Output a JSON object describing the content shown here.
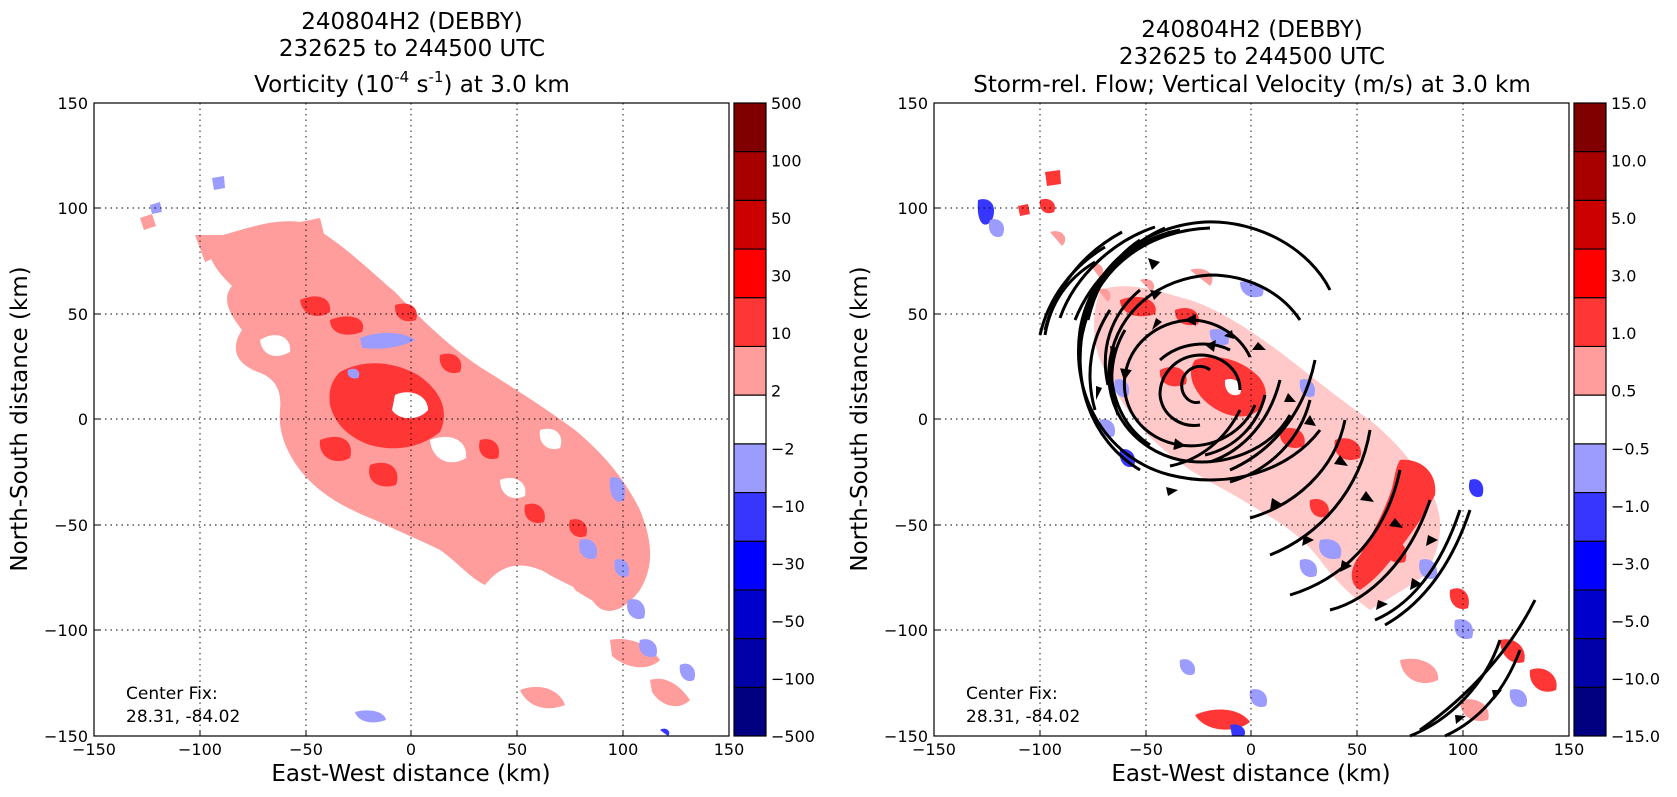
{
  "panels": [
    {
      "title_lines": [
        "240804H2 (DEBBY)",
        "232625 to 244500 UTC"
      ],
      "title_line3": {
        "pre": "Vorticity (10",
        "sup1": "-4",
        "mid": " s",
        "sup2": "-1",
        "post": ") at 3.0 km"
      },
      "xlabel": "East-West distance (km)",
      "ylabel": "North-South distance (km)",
      "x_ticks": [
        "−150",
        "−100",
        "−50",
        "0",
        "50",
        "100",
        "150"
      ],
      "y_ticks": [
        "150",
        "100",
        "50",
        "0",
        "−50",
        "−100",
        "−150"
      ],
      "colorbar_ticks": [
        "500",
        "100",
        "50",
        "30",
        "10",
        "2",
        "−2",
        "−10",
        "−30",
        "−50",
        "−100",
        "−500"
      ],
      "center_fix_label": "Center Fix:",
      "center_fix_value": "28.31, -84.02"
    },
    {
      "title_lines": [
        "240804H2 (DEBBY)",
        "232625 to 244500 UTC"
      ],
      "title_line3": {
        "text": "Storm-rel. Flow; Vertical Velocity (m/s) at 3.0 km"
      },
      "xlabel": "East-West distance (km)",
      "ylabel": "North-South distance (km)",
      "x_ticks": [
        "−150",
        "−100",
        "−50",
        "0",
        "50",
        "100",
        "150"
      ],
      "y_ticks": [
        "150",
        "100",
        "50",
        "0",
        "−50",
        "−100",
        "−150"
      ],
      "colorbar_ticks": [
        "15.0",
        "10.0",
        "5.0",
        "3.0",
        "1.0",
        "0.5",
        "−0.5",
        "−1.0",
        "−3.0",
        "−5.0",
        "−10.0",
        "−15.0"
      ],
      "center_fix_label": "Center Fix:",
      "center_fix_value": "28.31, -84.02"
    }
  ],
  "chart_data": [
    {
      "type": "heatmap",
      "field": "vorticity",
      "units": "10^-4 s^-1",
      "xlim": [
        -150,
        150
      ],
      "ylim": [
        -150,
        150
      ],
      "grid": true,
      "colorbar_levels": [
        -500,
        -100,
        -50,
        -30,
        -10,
        -2,
        2,
        10,
        30,
        50,
        100,
        500
      ],
      "colorbar_colors": [
        "#000080",
        "#0000a8",
        "#0000cd",
        "#0000ff",
        "#3636ff",
        "#9c9cff",
        "#ffffff",
        "#ff9c9c",
        "#ff3636",
        "#ff0000",
        "#cd0000",
        "#a80000",
        "#800000"
      ],
      "center_fix": [
        28.31,
        -84.02
      ]
    },
    {
      "type": "heatmap",
      "field": "vertical_velocity",
      "units": "m/s",
      "overlay": "storm-relative flow streamlines",
      "xlim": [
        -150,
        150
      ],
      "ylim": [
        -150,
        150
      ],
      "grid": true,
      "colorbar_levels": [
        -15.0,
        -10.0,
        -5.0,
        -3.0,
        -1.0,
        -0.5,
        0.5,
        1.0,
        3.0,
        5.0,
        10.0,
        15.0
      ],
      "colorbar_colors": [
        "#000080",
        "#0000a8",
        "#0000cd",
        "#0000ff",
        "#3636ff",
        "#9c9cff",
        "#ffffff",
        "#ff9c9c",
        "#ff3636",
        "#ff0000",
        "#cd0000",
        "#a80000",
        "#800000"
      ],
      "center_fix": [
        28.31,
        -84.02
      ]
    }
  ]
}
